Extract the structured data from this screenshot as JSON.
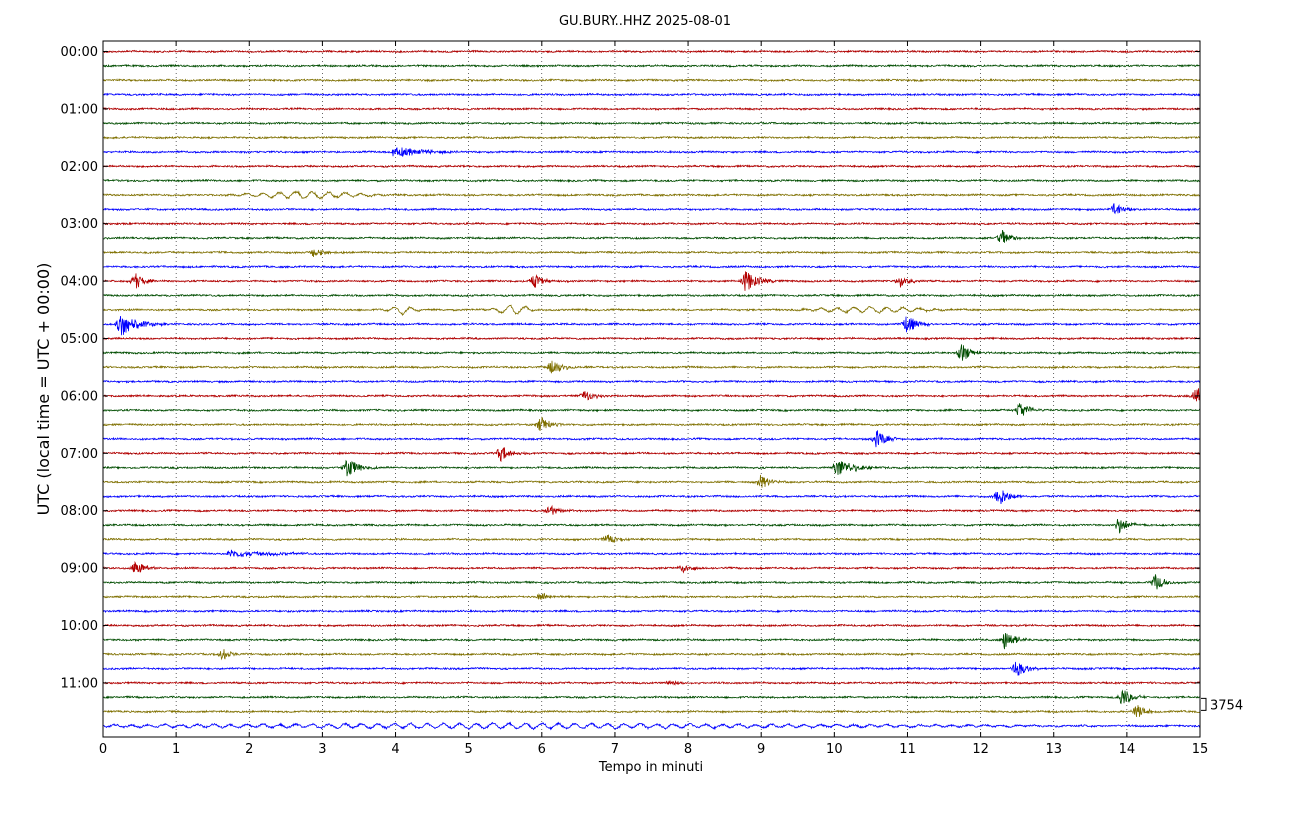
{
  "chart_data": {
    "type": "line",
    "title": "GU.BURY..HHZ 2025-08-01",
    "xlabel": "Tempo in minuti",
    "ylabel": "UTC (local time = UTC + 00:00)",
    "xlim": [
      0,
      15
    ],
    "x_ticks": [
      "0",
      "1",
      "2",
      "3",
      "4",
      "5",
      "6",
      "7",
      "8",
      "9",
      "10",
      "11",
      "12",
      "13",
      "14",
      "15"
    ],
    "y_tick_labels": [
      "00:00",
      "01:00",
      "02:00",
      "03:00",
      "04:00",
      "05:00",
      "06:00",
      "07:00",
      "08:00",
      "09:00",
      "10:00",
      "11:00"
    ],
    "grid": true,
    "trace_count": 48,
    "trace_interval_minutes": 15,
    "trace_colors": [
      "#b30000",
      "#004d00",
      "#7f7000",
      "#0000ff"
    ],
    "scale_label": "3754",
    "events": [
      {
        "trace": 7,
        "minute": 3.95,
        "amp": 0.7,
        "width": 0.9,
        "kind": "noise"
      },
      {
        "trace": 10,
        "minute": 2.8,
        "amp": 0.7,
        "width": 1.2,
        "kind": "wave"
      },
      {
        "trace": 11,
        "minute": 13.85,
        "amp": 0.6,
        "width": 0.25,
        "kind": "burst"
      },
      {
        "trace": 13,
        "minute": 12.3,
        "amp": 0.7,
        "width": 0.25,
        "kind": "burst"
      },
      {
        "trace": 14,
        "minute": 2.9,
        "amp": 0.5,
        "width": 0.25,
        "kind": "burst"
      },
      {
        "trace": 16,
        "minute": 0.45,
        "amp": 0.7,
        "width": 0.25,
        "kind": "burst"
      },
      {
        "trace": 16,
        "minute": 5.9,
        "amp": 0.6,
        "width": 0.25,
        "kind": "burst"
      },
      {
        "trace": 16,
        "minute": 8.8,
        "amp": 0.9,
        "width": 0.35,
        "kind": "burst"
      },
      {
        "trace": 16,
        "minute": 10.9,
        "amp": 0.5,
        "width": 0.25,
        "kind": "burst"
      },
      {
        "trace": 18,
        "minute": 4.1,
        "amp": 0.8,
        "width": 0.3,
        "kind": "wave"
      },
      {
        "trace": 18,
        "minute": 5.6,
        "amp": 0.9,
        "width": 0.4,
        "kind": "wave"
      },
      {
        "trace": 18,
        "minute": 10.5,
        "amp": 0.6,
        "width": 1.2,
        "kind": "wave"
      },
      {
        "trace": 19,
        "minute": 0.25,
        "amp": 1.1,
        "width": 0.45,
        "kind": "burst"
      },
      {
        "trace": 19,
        "minute": 11.0,
        "amp": 0.8,
        "width": 0.25,
        "kind": "burst"
      },
      {
        "trace": 21,
        "minute": 11.75,
        "amp": 0.8,
        "width": 0.25,
        "kind": "burst"
      },
      {
        "trace": 22,
        "minute": 6.15,
        "amp": 0.7,
        "width": 0.3,
        "kind": "burst"
      },
      {
        "trace": 24,
        "minute": 6.6,
        "amp": 0.5,
        "width": 0.25,
        "kind": "burst"
      },
      {
        "trace": 24,
        "minute": 14.95,
        "amp": 0.8,
        "width": 0.25,
        "kind": "burst"
      },
      {
        "trace": 25,
        "minute": 12.55,
        "amp": 0.8,
        "width": 0.25,
        "kind": "burst"
      },
      {
        "trace": 26,
        "minute": 6.0,
        "amp": 0.7,
        "width": 0.25,
        "kind": "burst"
      },
      {
        "trace": 27,
        "minute": 10.6,
        "amp": 0.8,
        "width": 0.25,
        "kind": "burst"
      },
      {
        "trace": 28,
        "minute": 5.45,
        "amp": 0.7,
        "width": 0.25,
        "kind": "burst"
      },
      {
        "trace": 29,
        "minute": 3.35,
        "amp": 0.9,
        "width": 0.3,
        "kind": "burst"
      },
      {
        "trace": 29,
        "minute": 10.05,
        "amp": 0.8,
        "width": 0.45,
        "kind": "burst"
      },
      {
        "trace": 30,
        "minute": 9.0,
        "amp": 0.6,
        "width": 0.25,
        "kind": "burst"
      },
      {
        "trace": 31,
        "minute": 12.25,
        "amp": 0.9,
        "width": 0.3,
        "kind": "burst"
      },
      {
        "trace": 32,
        "minute": 6.1,
        "amp": 0.5,
        "width": 0.25,
        "kind": "burst"
      },
      {
        "trace": 33,
        "minute": 13.9,
        "amp": 0.7,
        "width": 0.25,
        "kind": "burst"
      },
      {
        "trace": 34,
        "minute": 6.9,
        "amp": 0.5,
        "width": 0.25,
        "kind": "burst"
      },
      {
        "trace": 35,
        "minute": 1.7,
        "amp": 0.5,
        "width": 1.1,
        "kind": "noise"
      },
      {
        "trace": 36,
        "minute": 0.45,
        "amp": 0.6,
        "width": 0.25,
        "kind": "burst"
      },
      {
        "trace": 36,
        "minute": 7.95,
        "amp": 0.4,
        "width": 0.25,
        "kind": "burst"
      },
      {
        "trace": 37,
        "minute": 14.4,
        "amp": 0.7,
        "width": 0.25,
        "kind": "burst"
      },
      {
        "trace": 38,
        "minute": 6.0,
        "amp": 0.4,
        "width": 0.25,
        "kind": "burst"
      },
      {
        "trace": 41,
        "minute": 12.35,
        "amp": 0.9,
        "width": 0.25,
        "kind": "burst"
      },
      {
        "trace": 42,
        "minute": 1.65,
        "amp": 0.5,
        "width": 0.25,
        "kind": "burst"
      },
      {
        "trace": 43,
        "minute": 12.5,
        "amp": 0.8,
        "width": 0.25,
        "kind": "burst"
      },
      {
        "trace": 44,
        "minute": 7.7,
        "amp": 0.3,
        "width": 0.5,
        "kind": "noise"
      },
      {
        "trace": 45,
        "minute": 13.95,
        "amp": 0.8,
        "width": 0.25,
        "kind": "burst"
      },
      {
        "trace": 46,
        "minute": 14.15,
        "amp": 0.6,
        "width": 0.25,
        "kind": "burst"
      },
      {
        "trace": 47,
        "minute": 5.5,
        "amp": 0.5,
        "width": 9.0,
        "kind": "wave"
      }
    ]
  }
}
